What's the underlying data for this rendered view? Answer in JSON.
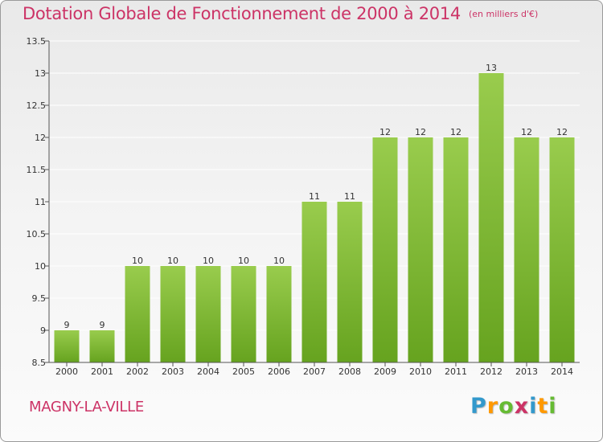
{
  "title": "Dotation Globale de Fonctionnement de 2000 à 2014",
  "unit_note": "(en milliers d'€)",
  "commune": "MAGNY-LA-VILLE",
  "logo": {
    "letters": [
      "P",
      "r",
      "o",
      "x",
      "i",
      "t",
      "i"
    ],
    "colors": [
      "#3399cc",
      "#ff9900",
      "#66bb33",
      "#cc3366",
      "#3399cc",
      "#ff9900",
      "#66bb33"
    ]
  },
  "colors": {
    "title": "#cc3366",
    "bar_top": "#99cc4d",
    "bar_bottom": "#66a31f"
  },
  "chart_data": {
    "type": "bar",
    "title": "Dotation Globale de Fonctionnement de 2000 à 2014",
    "xlabel": "",
    "ylabel": "en milliers d'€",
    "categories": [
      "2000",
      "2001",
      "2002",
      "2003",
      "2004",
      "2005",
      "2006",
      "2007",
      "2008",
      "2009",
      "2010",
      "2011",
      "2012",
      "2013",
      "2014"
    ],
    "values": [
      9,
      9,
      10,
      10,
      10,
      10,
      10,
      11,
      11,
      12,
      12,
      12,
      13,
      12,
      12
    ],
    "ylim": [
      8.5,
      13.5
    ],
    "yticks": [
      8.5,
      9,
      9.5,
      10,
      10.5,
      11,
      11.5,
      12,
      12.5,
      13,
      13.5
    ],
    "ytick_labels": [
      "8.5",
      "9",
      "9.5",
      "10",
      "10.5",
      "11",
      "11.5",
      "12",
      "12.5",
      "13",
      "13.5"
    ],
    "grid": true
  }
}
